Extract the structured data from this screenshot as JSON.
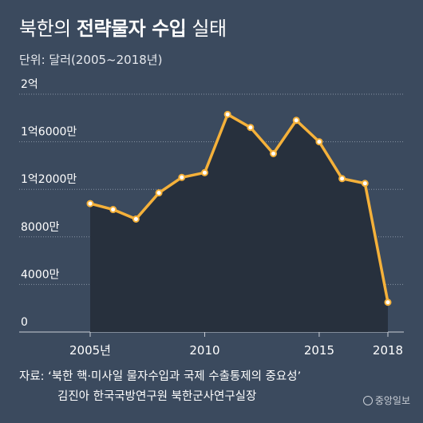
{
  "header": {
    "title_prefix": "북한의",
    "title_bold": "전략물자 수입",
    "title_suffix": "실태",
    "unit": "단위: 달러(2005~2018년)"
  },
  "colors": {
    "background": "#3b4a5e",
    "area": "#27303d",
    "line": "#f5b13a",
    "marker_fill": "#ffffff",
    "grid": "#8792a3"
  },
  "chart_data": {
    "type": "line",
    "x": [
      2005,
      2006,
      2007,
      2008,
      2009,
      2010,
      2011,
      2012,
      2013,
      2014,
      2015,
      2016,
      2017,
      2018
    ],
    "series": [
      {
        "values": [
          108000000,
          103000000,
          95000000,
          117000000,
          130000000,
          134000000,
          183000000,
          172000000,
          150000000,
          178000000,
          160000000,
          129000000,
          125000000,
          25000000
        ]
      }
    ],
    "ylim": [
      0,
      200000000
    ],
    "xlim": [
      2005,
      2018
    ],
    "yticks": [
      0,
      40000000,
      80000000,
      120000000,
      160000000,
      200000000
    ],
    "ytick_labels": [
      "0",
      "4000만",
      "8000만",
      "1억2000만",
      "1억6000만",
      "2억"
    ],
    "xticks": [
      2005,
      2010,
      2015,
      2018
    ],
    "xtick_labels": [
      "2005년",
      "2010",
      "2015",
      "2018"
    ],
    "grid": "horizontal",
    "area_fill": true
  },
  "footer": {
    "source_line1": "자료: ‘북한 핵·미사일 물자수입과 국제 수출통제의 중요성’",
    "source_line2": "김진아 한국국방연구원 북한군사연구실장",
    "logo_text": "중앙일보"
  }
}
